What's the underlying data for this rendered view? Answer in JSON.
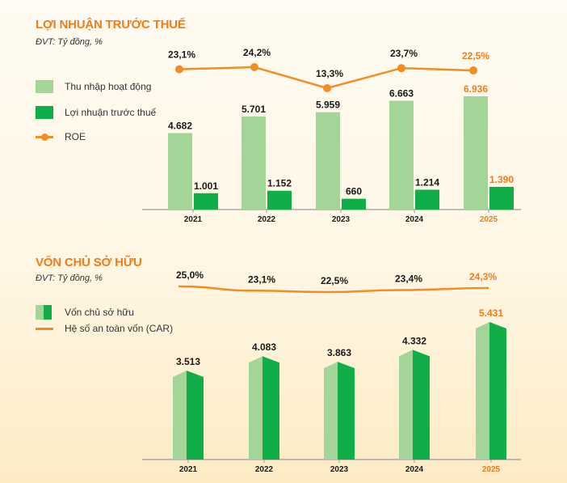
{
  "section1": {
    "title": "LỢI NHUẬN TRƯỚC THUẾ",
    "unit": "ĐVT: Tỷ đồng, %",
    "legend": {
      "series1": "Thu nhập hoạt động",
      "series2": "Lợi nhuận trước thuế",
      "series3": "ROE"
    }
  },
  "section2": {
    "title": "VỐN CHỦ SỞ HỮU",
    "unit": "ĐVT: Tỷ đồng, %",
    "legend": {
      "series1": "Vốn chủ sở hữu",
      "series2": "Hệ số an toàn vốn (CAR)"
    }
  },
  "colors": {
    "title": "#f07d1a",
    "light_green": "#a3d599",
    "dark_green": "#10ae48",
    "orange_line": "#f28c24",
    "highlight_text": "#f07d1a",
    "normal_text": "#1a1a1a"
  },
  "chart_data": [
    {
      "type": "bar",
      "title": "LỢI NHUẬN TRƯỚC THUẾ",
      "categories": [
        "2021",
        "2022",
        "2023",
        "2024",
        "2025"
      ],
      "highlight_category": "2025",
      "series": [
        {
          "name": "Thu nhập hoạt động",
          "kind": "bar",
          "values": [
            4682,
            5701,
            5959,
            6663,
            6936
          ],
          "labels": [
            "4.682",
            "5.701",
            "5.959",
            "6.663",
            "6.936"
          ]
        },
        {
          "name": "Lợi nhuận trước thuế",
          "kind": "bar",
          "values": [
            1001,
            1152,
            660,
            1214,
            1390
          ],
          "labels": [
            "1.001",
            "1.152",
            "660",
            "1.214",
            "1.390"
          ]
        },
        {
          "name": "ROE",
          "kind": "line",
          "values": [
            23.1,
            24.2,
            13.3,
            23.7,
            22.5
          ],
          "labels": [
            "23,1%",
            "24,2%",
            "13,3%",
            "23,7%",
            "22,5%"
          ]
        }
      ],
      "ylim": [
        0,
        7000
      ],
      "grid": false,
      "legend_position": "top-left"
    },
    {
      "type": "bar",
      "title": "VỐN CHỦ SỞ HỮU",
      "categories": [
        "2021",
        "2022",
        "2023",
        "2024",
        "2025"
      ],
      "highlight_category": "2025",
      "series": [
        {
          "name": "Vốn chủ sở hữu",
          "kind": "bar",
          "values": [
            3513,
            4083,
            3863,
            4332,
            5431
          ],
          "labels": [
            "3.513",
            "4.083",
            "3.863",
            "4.332",
            "5.431"
          ]
        },
        {
          "name": "Hệ số an toàn vốn (CAR)",
          "kind": "line",
          "values": [
            25.0,
            23.1,
            22.5,
            23.4,
            24.3
          ],
          "labels": [
            "25,0%",
            "23,1%",
            "22,5%",
            "23,4%",
            "24,3%"
          ]
        }
      ],
      "ylim": [
        0,
        5500
      ],
      "grid": false,
      "legend_position": "top-left"
    }
  ]
}
